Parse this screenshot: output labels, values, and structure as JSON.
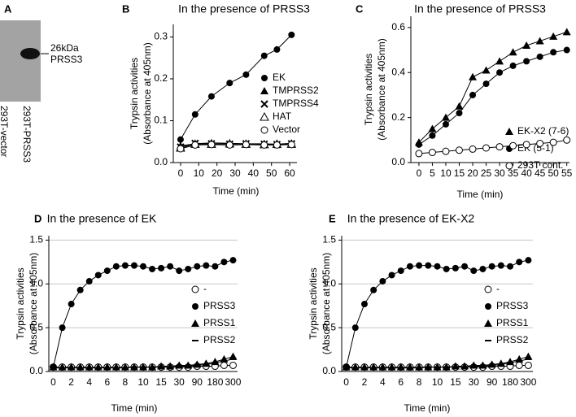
{
  "blot": {
    "label": "A",
    "band_label": [
      "26kDa",
      "PRSS3"
    ],
    "lanes": [
      "293T-vector",
      "293T-PRSS3"
    ]
  },
  "chart_data": [
    {
      "type": "line",
      "panel_label": "B",
      "title": "In the presence of PRSS3",
      "y_label": [
        "Trypsin activities",
        "(Absorbance at 405nm)"
      ],
      "x_label": "Time (min)",
      "x": [
        0,
        8,
        17,
        27,
        36,
        46,
        53,
        61
      ],
      "xlim": [
        -4,
        64
      ],
      "xticks": [
        0,
        10,
        20,
        30,
        40,
        50,
        60
      ],
      "ylim": [
        0,
        0.33
      ],
      "yticks": [
        {
          "value": 0,
          "label": "0.0"
        },
        0.1,
        0.2,
        0.3
      ],
      "grid": false,
      "series": [
        {
          "name": "EK",
          "color": "#000000",
          "marker": "circle",
          "values": [
            0.055,
            0.115,
            0.158,
            0.19,
            0.21,
            0.255,
            0.27,
            0.305
          ]
        },
        {
          "name": "TMPRSS2",
          "color": "#000000",
          "marker": "triangle",
          "values": [
            0.04,
            0.045,
            0.047,
            0.046,
            0.045,
            0.045,
            0.044,
            0.046
          ]
        },
        {
          "name": "TMPRSS4",
          "color": "#000000",
          "marker": "cross",
          "values": [
            0.037,
            0.046,
            0.045,
            0.044,
            0.045,
            0.044,
            0.043,
            0.045
          ]
        },
        {
          "name": "HAT",
          "color": "#000000",
          "marker": "open-triangle",
          "values": [
            0.035,
            0.044,
            0.044,
            0.045,
            0.044,
            0.043,
            0.044,
            0.044
          ]
        },
        {
          "name": "Vector",
          "color": "#000000",
          "marker": "open-circle",
          "values": [
            0.033,
            0.042,
            0.043,
            0.042,
            0.043,
            0.042,
            0.042,
            0.043
          ]
        }
      ]
    },
    {
      "type": "line",
      "panel_label": "C",
      "title": "In the presence of PRSS3",
      "y_label": [
        "Trypsin activities",
        "(Absorbance at 405nm)"
      ],
      "x_label": "Time (min)",
      "x": [
        0,
        5,
        10,
        15,
        20,
        25,
        30,
        35,
        40,
        45,
        50,
        55
      ],
      "xlim": [
        -3,
        56
      ],
      "xticks": [
        0,
        5,
        10,
        15,
        20,
        25,
        30,
        35,
        40,
        45,
        50,
        55
      ],
      "ylim": [
        0,
        0.65
      ],
      "yticks": [
        {
          "value": 0,
          "label": "0.0"
        },
        0.2,
        0.4,
        0.6
      ],
      "grid": false,
      "series": [
        {
          "name": "EK-X2 (7-6)",
          "color": "#000000",
          "marker": "triangle",
          "values": [
            0.09,
            0.15,
            0.2,
            0.25,
            0.38,
            0.41,
            0.45,
            0.49,
            0.52,
            0.54,
            0.56,
            0.58
          ]
        },
        {
          "name": "EK (5-1)",
          "color": "#000000",
          "marker": "circle",
          "values": [
            0.08,
            0.12,
            0.17,
            0.22,
            0.3,
            0.35,
            0.4,
            0.43,
            0.45,
            0.47,
            0.49,
            0.5
          ]
        },
        {
          "name": "293T cont.",
          "color": "#000000",
          "marker": "open-circle",
          "values": [
            0.04,
            0.045,
            0.05,
            0.055,
            0.06,
            0.065,
            0.07,
            0.075,
            0.08,
            0.085,
            0.09,
            0.1
          ]
        }
      ]
    },
    {
      "type": "line",
      "panel_label": "D",
      "title": "In the presence of EK",
      "y_label": [
        "Trypsin activities",
        "(Absorbance at 405nm)"
      ],
      "x_label": "Time (min)",
      "categories": [
        "0",
        null,
        "2",
        null,
        "4",
        null,
        "6",
        null,
        "8",
        null,
        "10",
        null,
        "15",
        null,
        "30",
        null,
        "90",
        null,
        "180",
        null,
        "300"
      ],
      "ylim": [
        0,
        1.55
      ],
      "yticks": [
        {
          "value": 0,
          "label": "0.0"
        },
        0.5,
        {
          "value": 1,
          "label": "1.0"
        },
        1.5
      ],
      "grid": true,
      "series": [
        {
          "name": "-",
          "color": "#000000",
          "marker": "open-circle",
          "values": [
            0.05,
            0.05,
            0.05,
            0.05,
            0.05,
            0.05,
            0.05,
            0.05,
            0.05,
            0.05,
            0.05,
            0.05,
            0.05,
            0.05,
            0.05,
            0.05,
            0.06,
            0.06,
            0.06,
            0.07,
            0.07
          ]
        },
        {
          "name": "PRSS3",
          "color": "#000000",
          "marker": "circle",
          "values": [
            0.05,
            0.5,
            0.77,
            0.93,
            1.03,
            1.1,
            1.15,
            1.2,
            1.21,
            1.21,
            1.2,
            1.17,
            1.18,
            1.2,
            1.15,
            1.17,
            1.2,
            1.21,
            1.2,
            1.25,
            1.27
          ]
        },
        {
          "name": "PRSS1",
          "color": "#000000",
          "marker": "triangle",
          "values": [
            0.05,
            0.05,
            0.05,
            0.05,
            0.05,
            0.05,
            0.05,
            0.05,
            0.05,
            0.05,
            0.05,
            0.05,
            0.06,
            0.06,
            0.07,
            0.07,
            0.08,
            0.09,
            0.11,
            0.14,
            0.17
          ]
        },
        {
          "name": "PRSS2",
          "color": "#000000",
          "marker": "dash",
          "values": [
            0.04,
            0.04,
            0.04,
            0.04,
            0.04,
            0.04,
            0.04,
            0.04,
            0.04,
            0.05,
            0.05,
            0.05,
            0.05,
            0.05,
            0.06,
            0.06,
            0.07,
            0.08,
            0.1,
            0.12,
            0.14
          ]
        }
      ]
    },
    {
      "type": "line",
      "panel_label": "E",
      "title": "In the presence of EK-X2",
      "y_label": [
        "Trypsin activities",
        "(Absorbance at 405nm)"
      ],
      "x_label": "Time (min)",
      "categories": [
        "0",
        null,
        "2",
        null,
        "4",
        null,
        "6",
        null,
        "8",
        null,
        "10",
        null,
        "15",
        null,
        "30",
        null,
        "90",
        null,
        "180",
        null,
        "300"
      ],
      "ylim": [
        0,
        1.55
      ],
      "yticks": [
        {
          "value": 0,
          "label": "0.0"
        },
        0.5,
        {
          "value": 1,
          "label": "1.0"
        },
        1.5
      ],
      "grid": true,
      "series": [
        {
          "name": "-",
          "color": "#000000",
          "marker": "open-circle",
          "values": [
            0.05,
            0.05,
            0.05,
            0.05,
            0.05,
            0.05,
            0.05,
            0.05,
            0.05,
            0.05,
            0.05,
            0.05,
            0.05,
            0.05,
            0.05,
            0.05,
            0.06,
            0.06,
            0.06,
            0.07,
            0.07
          ]
        },
        {
          "name": "PRSS3",
          "color": "#000000",
          "marker": "circle",
          "values": [
            0.05,
            0.5,
            0.77,
            0.93,
            1.03,
            1.1,
            1.15,
            1.2,
            1.21,
            1.21,
            1.2,
            1.17,
            1.18,
            1.2,
            1.15,
            1.17,
            1.2,
            1.21,
            1.2,
            1.25,
            1.27
          ]
        },
        {
          "name": "PRSS1",
          "color": "#000000",
          "marker": "triangle",
          "values": [
            0.05,
            0.05,
            0.05,
            0.05,
            0.05,
            0.05,
            0.05,
            0.05,
            0.05,
            0.05,
            0.05,
            0.05,
            0.06,
            0.06,
            0.07,
            0.07,
            0.08,
            0.09,
            0.11,
            0.14,
            0.17
          ]
        },
        {
          "name": "PRSS2",
          "color": "#000000",
          "marker": "dash",
          "values": [
            0.04,
            0.04,
            0.04,
            0.04,
            0.04,
            0.04,
            0.04,
            0.04,
            0.04,
            0.05,
            0.05,
            0.05,
            0.05,
            0.05,
            0.06,
            0.06,
            0.07,
            0.08,
            0.1,
            0.12,
            0.14
          ]
        }
      ]
    }
  ]
}
